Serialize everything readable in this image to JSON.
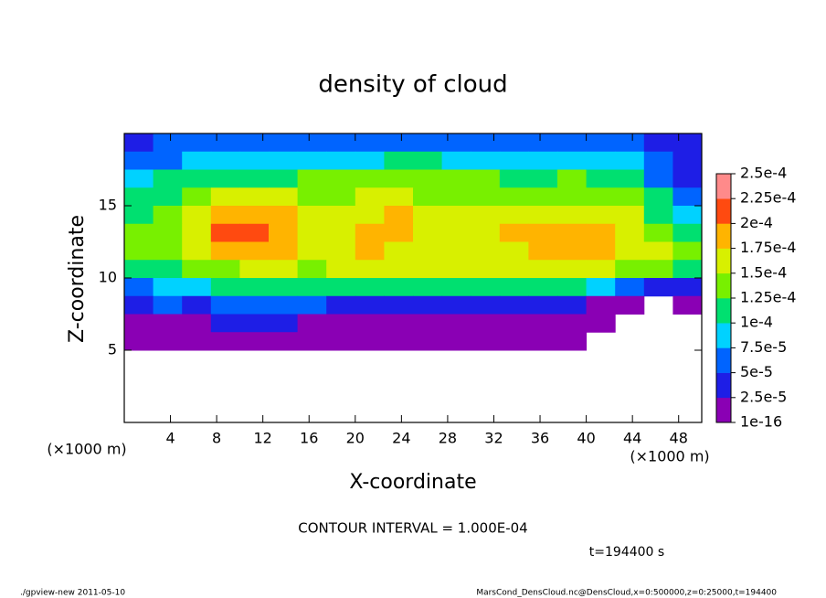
{
  "chart_data": {
    "type": "heatmap",
    "title": "density of cloud",
    "x_label": "X-coordinate",
    "y_label": "Z-coordinate",
    "x_unit_label": "(×1000 m)",
    "y_unit_label": "(×1000 m)",
    "annotation": "CONTOUR INTERVAL = 1.000E-04",
    "time_label": "t=194400 s",
    "footer_left": "./gpview-new  2011-05-10",
    "footer_right": "MarsCond_DensCloud.nc@DensCloud,x=0:500000,z=0:25000,t=194400",
    "xlim": [
      0,
      50
    ],
    "ylim": [
      0,
      20
    ],
    "xticks": [
      4,
      8,
      12,
      16,
      20,
      24,
      28,
      32,
      36,
      40,
      44,
      48
    ],
    "yticks": [
      5,
      10,
      15
    ],
    "x": [
      1.25,
      3.75,
      6.25,
      8.75,
      11.25,
      13.75,
      16.25,
      18.75,
      21.25,
      23.75,
      26.25,
      28.75,
      31.25,
      33.75,
      36.25,
      38.75,
      41.25,
      43.75,
      46.25,
      48.75
    ],
    "y": [
      19.375,
      18.125,
      16.875,
      15.625,
      14.375,
      13.125,
      11.875,
      10.625,
      9.375,
      8.125,
      6.875,
      5.625
    ],
    "values": [
      [
        4e-05,
        5e-05,
        6e-05,
        6e-05,
        6e-05,
        6e-05,
        6e-05,
        6e-05,
        6e-05,
        6e-05,
        6e-05,
        6e-05,
        6e-05,
        6e-05,
        6e-05,
        6e-05,
        6e-05,
        5e-05,
        4e-05,
        3e-05
      ],
      [
        6e-05,
        7e-05,
        8e-05,
        8e-05,
        8.5e-05,
        9e-05,
        9e-05,
        9.5e-05,
        9.5e-05,
        0.0001,
        0.0001,
        9.5e-05,
        9e-05,
        9e-05,
        9e-05,
        9e-05,
        9.5e-05,
        9e-05,
        5e-05,
        4e-05
      ],
      [
        8e-05,
        0.0001,
        0.000115,
        0.00012,
        0.00012,
        0.00012,
        0.000125,
        0.00013,
        0.00013,
        0.00013,
        0.00013,
        0.00013,
        0.000125,
        0.00012,
        0.00012,
        0.000125,
        0.00012,
        0.00011,
        7e-05,
        4e-05
      ],
      [
        0.0001,
        0.00012,
        0.00014,
        0.00016,
        0.00016,
        0.00015,
        0.00014,
        0.000145,
        0.00015,
        0.00015,
        0.000145,
        0.00014,
        0.00014,
        0.00014,
        0.00014,
        0.000145,
        0.00014,
        0.00013,
        0.0001,
        6e-05
      ],
      [
        0.00012,
        0.000135,
        0.000155,
        0.00019,
        0.000195,
        0.000185,
        0.00015,
        0.00015,
        0.000165,
        0.000175,
        0.00016,
        0.00015,
        0.000155,
        0.00016,
        0.00016,
        0.000165,
        0.00016,
        0.00015,
        0.00012,
        8e-05
      ],
      [
        0.00013,
        0.000145,
        0.00016,
        0.0002,
        0.0002,
        0.00019,
        0.00016,
        0.000165,
        0.00018,
        0.00019,
        0.00017,
        0.00016,
        0.00017,
        0.000175,
        0.00018,
        0.000185,
        0.000175,
        0.00017,
        0.00013,
        0.00011
      ],
      [
        0.00013,
        0.00014,
        0.000155,
        0.000185,
        0.00019,
        0.00018,
        0.00016,
        0.000165,
        0.000175,
        0.00017,
        0.00016,
        0.00016,
        0.000165,
        0.00017,
        0.000175,
        0.000185,
        0.00018,
        0.00017,
        0.00015,
        0.00014
      ],
      [
        0.000105,
        0.00012,
        0.000135,
        0.000145,
        0.00015,
        0.00015,
        0.000145,
        0.00015,
        0.00015,
        0.00015,
        0.00015,
        0.00015,
        0.00015,
        0.00015,
        0.000155,
        0.000155,
        0.00015,
        0.00014,
        0.00013,
        0.00012
      ],
      [
        6e-05,
        8e-05,
        9e-05,
        0.000105,
        0.00011,
        0.000105,
        0.00011,
        0.000115,
        0.00011,
        0.00011,
        0.00011,
        0.00011,
        0.000105,
        0.0001,
        0.0001,
        0.000105,
        9e-05,
        5e-05,
        4e-05,
        3e-05
      ],
      [
        3e-05,
        5e-05,
        4e-05,
        5e-05,
        6e-05,
        6e-05,
        5e-05,
        4e-05,
        3e-05,
        3e-05,
        3e-05,
        3e-05,
        3e-05,
        3e-05,
        3e-05,
        3e-05,
        2e-05,
        1e-05,
        null,
        1e-05
      ],
      [
        1e-05,
        1e-05,
        1e-05,
        3e-05,
        4e-05,
        3e-05,
        1e-05,
        1e-05,
        1e-05,
        1e-05,
        1e-05,
        1e-05,
        2e-05,
        1e-05,
        1e-05,
        1e-05,
        1e-05,
        null,
        null,
        null
      ],
      [
        1e-05,
        1e-05,
        1e-05,
        1e-05,
        1e-05,
        1e-05,
        1e-05,
        1e-05,
        1e-05,
        1e-05,
        1e-05,
        1e-05,
        1e-05,
        1e-05,
        1e-05,
        1e-05,
        null,
        null,
        null,
        null
      ]
    ],
    "colorbar": {
      "ticks": [
        {
          "value": 1e-16,
          "label": "1e-16"
        },
        {
          "value": 2.5e-05,
          "label": "2.5e-5"
        },
        {
          "value": 5e-05,
          "label": "5e-5"
        },
        {
          "value": 7.5e-05,
          "label": "7.5e-5"
        },
        {
          "value": 0.0001,
          "label": "1e-4"
        },
        {
          "value": 0.000125,
          "label": "1.25e-4"
        },
        {
          "value": 0.00015,
          "label": "1.5e-4"
        },
        {
          "value": 0.000175,
          "label": "1.75e-4"
        },
        {
          "value": 0.0002,
          "label": "2e-4"
        },
        {
          "value": 0.000225,
          "label": "2.25e-4"
        },
        {
          "value": 0.00025,
          "label": "2.5e-4"
        }
      ],
      "colors": [
        "#8a00b4",
        "#1e1ee6",
        "#0064ff",
        "#00d2ff",
        "#00e070",
        "#78f000",
        "#d8f000",
        "#ffb400",
        "#ff4a10",
        "#ff8a8a"
      ]
    }
  }
}
